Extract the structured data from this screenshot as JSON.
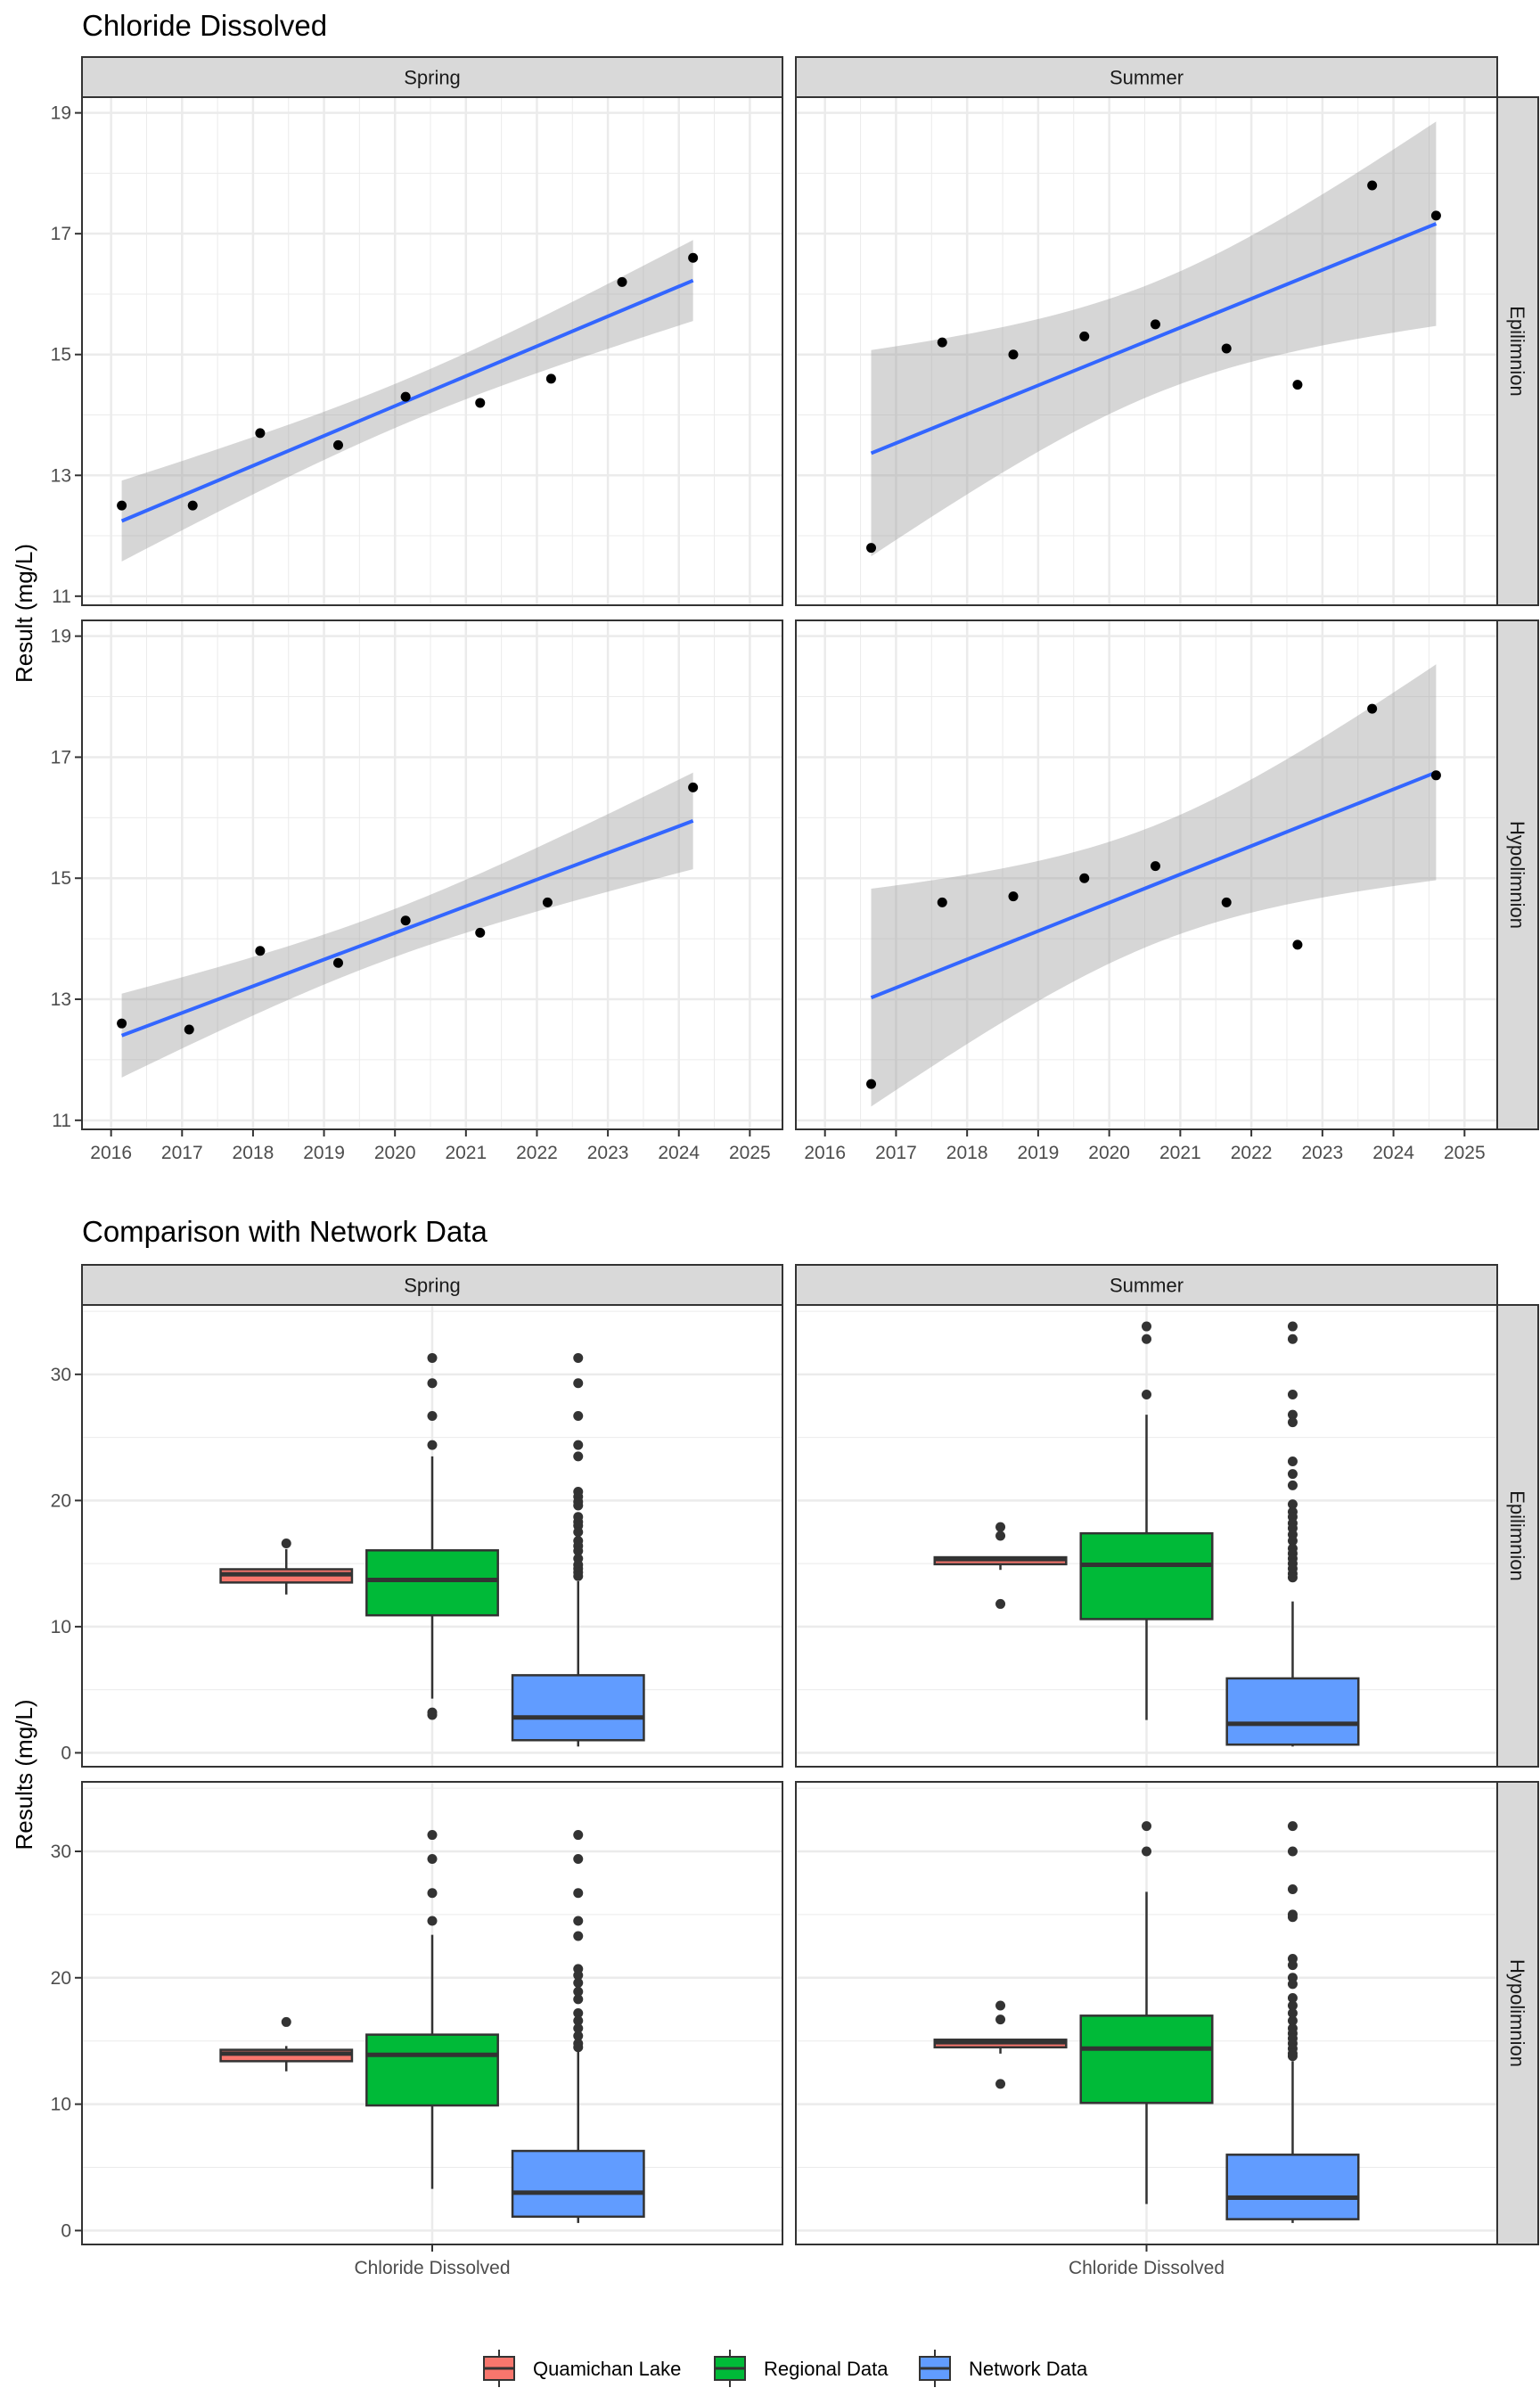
{
  "colors": {
    "fit_line": "#3366FF",
    "ribbon": "#999999",
    "point": "#000000",
    "quamichan": "#F8766D",
    "regional": "#00BA38",
    "network": "#619CFF",
    "strip": "#D9D9D9",
    "grid": "#EBEBEB",
    "border": "#333333"
  },
  "chart_data": [
    {
      "type": "scatter",
      "title": "Chloride Dissolved",
      "ylabel": "Result (mg/L)",
      "xlabel": "",
      "facet_cols": [
        "Spring",
        "Summer"
      ],
      "facet_rows": [
        "Epilimnion",
        "Hypolimnion"
      ],
      "xlim": [
        2015.59,
        2025.46
      ],
      "ylim": [
        10.85,
        19.26
      ],
      "x_ticks": [
        2016,
        2017,
        2018,
        2019,
        2020,
        2021,
        2022,
        2023,
        2024,
        2025
      ],
      "y_ticks": [
        11,
        13,
        15,
        17,
        19
      ],
      "smooth": "lm with 95% confidence band",
      "grid": true,
      "panels": [
        {
          "col": "Spring",
          "row": "Epilimnion",
          "x": [
            2016.15,
            2017.15,
            2018.1,
            2019.2,
            2020.15,
            2021.2,
            2022.2,
            2023.2,
            2024.2
          ],
          "y": [
            12.5,
            12.5,
            13.7,
            13.5,
            14.3,
            14.2,
            14.6,
            16.2,
            16.6
          ]
        },
        {
          "col": "Summer",
          "row": "Epilimnion",
          "x": [
            2016.65,
            2017.65,
            2018.65,
            2019.65,
            2020.65,
            2021.65,
            2022.65,
            2023.7,
            2024.6
          ],
          "y": [
            11.8,
            15.2,
            15.0,
            15.3,
            15.5,
            15.1,
            14.5,
            17.8,
            17.3
          ]
        },
        {
          "col": "Spring",
          "row": "Hypolimnion",
          "x": [
            2016.15,
            2017.1,
            2018.1,
            2019.2,
            2020.15,
            2021.2,
            2022.15,
            2024.2
          ],
          "y": [
            12.6,
            12.5,
            13.8,
            13.6,
            14.3,
            14.1,
            14.6,
            16.5
          ]
        },
        {
          "col": "Summer",
          "row": "Hypolimnion",
          "x": [
            2016.65,
            2017.65,
            2018.65,
            2019.65,
            2020.65,
            2021.65,
            2022.65,
            2023.7,
            2024.6
          ],
          "y": [
            11.6,
            14.6,
            14.7,
            15.0,
            15.2,
            14.6,
            13.9,
            17.8,
            16.7
          ]
        }
      ]
    },
    {
      "type": "box",
      "title": "Comparison with Network Data",
      "ylabel": "Results (mg/L)",
      "categories": [
        "Chloride Dissolved"
      ],
      "facet_cols": [
        "Spring",
        "Summer"
      ],
      "facet_rows": [
        "Epilimnion",
        "Hypolimnion"
      ],
      "ylim": [
        -1.1,
        35.5
      ],
      "y_ticks": [
        0,
        10,
        20,
        30
      ],
      "grid": true,
      "legend": {
        "position": "bottom",
        "entries": [
          "Quamichan Lake",
          "Regional Data",
          "Network Data"
        ]
      },
      "panels": [
        {
          "col": "Spring",
          "row": "Epilimnion",
          "groups": [
            {
              "name": "Quamichan Lake",
              "q1": 13.5,
              "median": 14.15,
              "q3": 14.55,
              "lower": 12.55,
              "upper": 16.15,
              "outliers": [
                16.6
              ]
            },
            {
              "name": "Regional Data",
              "q1": 10.9,
              "median": 13.7,
              "q3": 16.05,
              "lower": 4.3,
              "upper": 23.5,
              "outliers": [
                31.3,
                29.3,
                26.7,
                24.4,
                3.2,
                3.0
              ]
            },
            {
              "name": "Network Data",
              "q1": 1.0,
              "median": 2.8,
              "q3": 6.15,
              "lower": 0.5,
              "upper": 13.6,
              "outliers": [
                31.3,
                29.3,
                26.7,
                24.4,
                23.5,
                20.7,
                20.3,
                19.9,
                19.6,
                18.7,
                18.3,
                18.0,
                17.5,
                16.8,
                16.4,
                16.0,
                15.4,
                14.9,
                14.6,
                14.3,
                14.0
              ]
            }
          ]
        },
        {
          "col": "Summer",
          "row": "Epilimnion",
          "groups": [
            {
              "name": "Quamichan Lake",
              "q1": 14.95,
              "median": 15.35,
              "q3": 15.5,
              "lower": 14.5,
              "upper": 15.5,
              "outliers": [
                17.9,
                17.2,
                11.8
              ]
            },
            {
              "name": "Regional Data",
              "q1": 10.6,
              "median": 14.9,
              "q3": 17.4,
              "lower": 2.6,
              "upper": 26.8,
              "outliers": [
                33.8,
                32.8,
                28.4
              ]
            },
            {
              "name": "Network Data",
              "q1": 0.65,
              "median": 2.3,
              "q3": 5.9,
              "lower": 0.5,
              "upper": 12.0,
              "outliers": [
                33.8,
                32.8,
                28.4,
                26.8,
                26.2,
                23.1,
                22.1,
                21.2,
                19.7,
                19.1,
                18.7,
                18.2,
                17.8,
                17.3,
                16.8,
                16.2,
                15.8,
                15.4,
                15.0,
                14.6,
                14.2,
                13.9
              ]
            }
          ]
        },
        {
          "col": "Spring",
          "row": "Hypolimnion",
          "groups": [
            {
              "name": "Quamichan Lake",
              "q1": 13.4,
              "median": 14.0,
              "q3": 14.3,
              "lower": 12.6,
              "upper": 14.6,
              "outliers": [
                16.5
              ]
            },
            {
              "name": "Regional Data",
              "q1": 9.9,
              "median": 13.9,
              "q3": 15.5,
              "lower": 3.3,
              "upper": 23.4,
              "outliers": [
                31.3,
                29.4,
                26.7,
                24.5
              ]
            },
            {
              "name": "Network Data",
              "q1": 1.1,
              "median": 3.0,
              "q3": 6.3,
              "lower": 0.6,
              "upper": 14.3,
              "outliers": [
                31.3,
                29.4,
                26.7,
                24.5,
                23.3,
                20.7,
                20.2,
                19.6,
                18.9,
                18.3,
                17.2,
                16.6,
                16.0,
                15.4,
                14.8,
                14.5
              ]
            }
          ]
        },
        {
          "col": "Summer",
          "row": "Hypolimnion",
          "groups": [
            {
              "name": "Quamichan Lake",
              "q1": 14.5,
              "median": 14.9,
              "q3": 15.1,
              "lower": 14.0,
              "upper": 15.1,
              "outliers": [
                17.8,
                16.7,
                11.6
              ]
            },
            {
              "name": "Regional Data",
              "q1": 10.1,
              "median": 14.4,
              "q3": 17.0,
              "lower": 2.1,
              "upper": 26.8,
              "outliers": [
                32.0,
                30.0
              ]
            },
            {
              "name": "Network Data",
              "q1": 0.9,
              "median": 2.6,
              "q3": 6.0,
              "lower": 0.6,
              "upper": 13.4,
              "outliers": [
                32.0,
                30.0,
                27.0,
                25.0,
                24.8,
                21.5,
                21.0,
                20.0,
                19.5,
                18.4,
                17.8,
                17.2,
                16.6,
                16.0,
                15.6,
                15.2,
                14.8,
                14.4,
                14.0,
                13.8
              ]
            }
          ]
        }
      ]
    }
  ]
}
